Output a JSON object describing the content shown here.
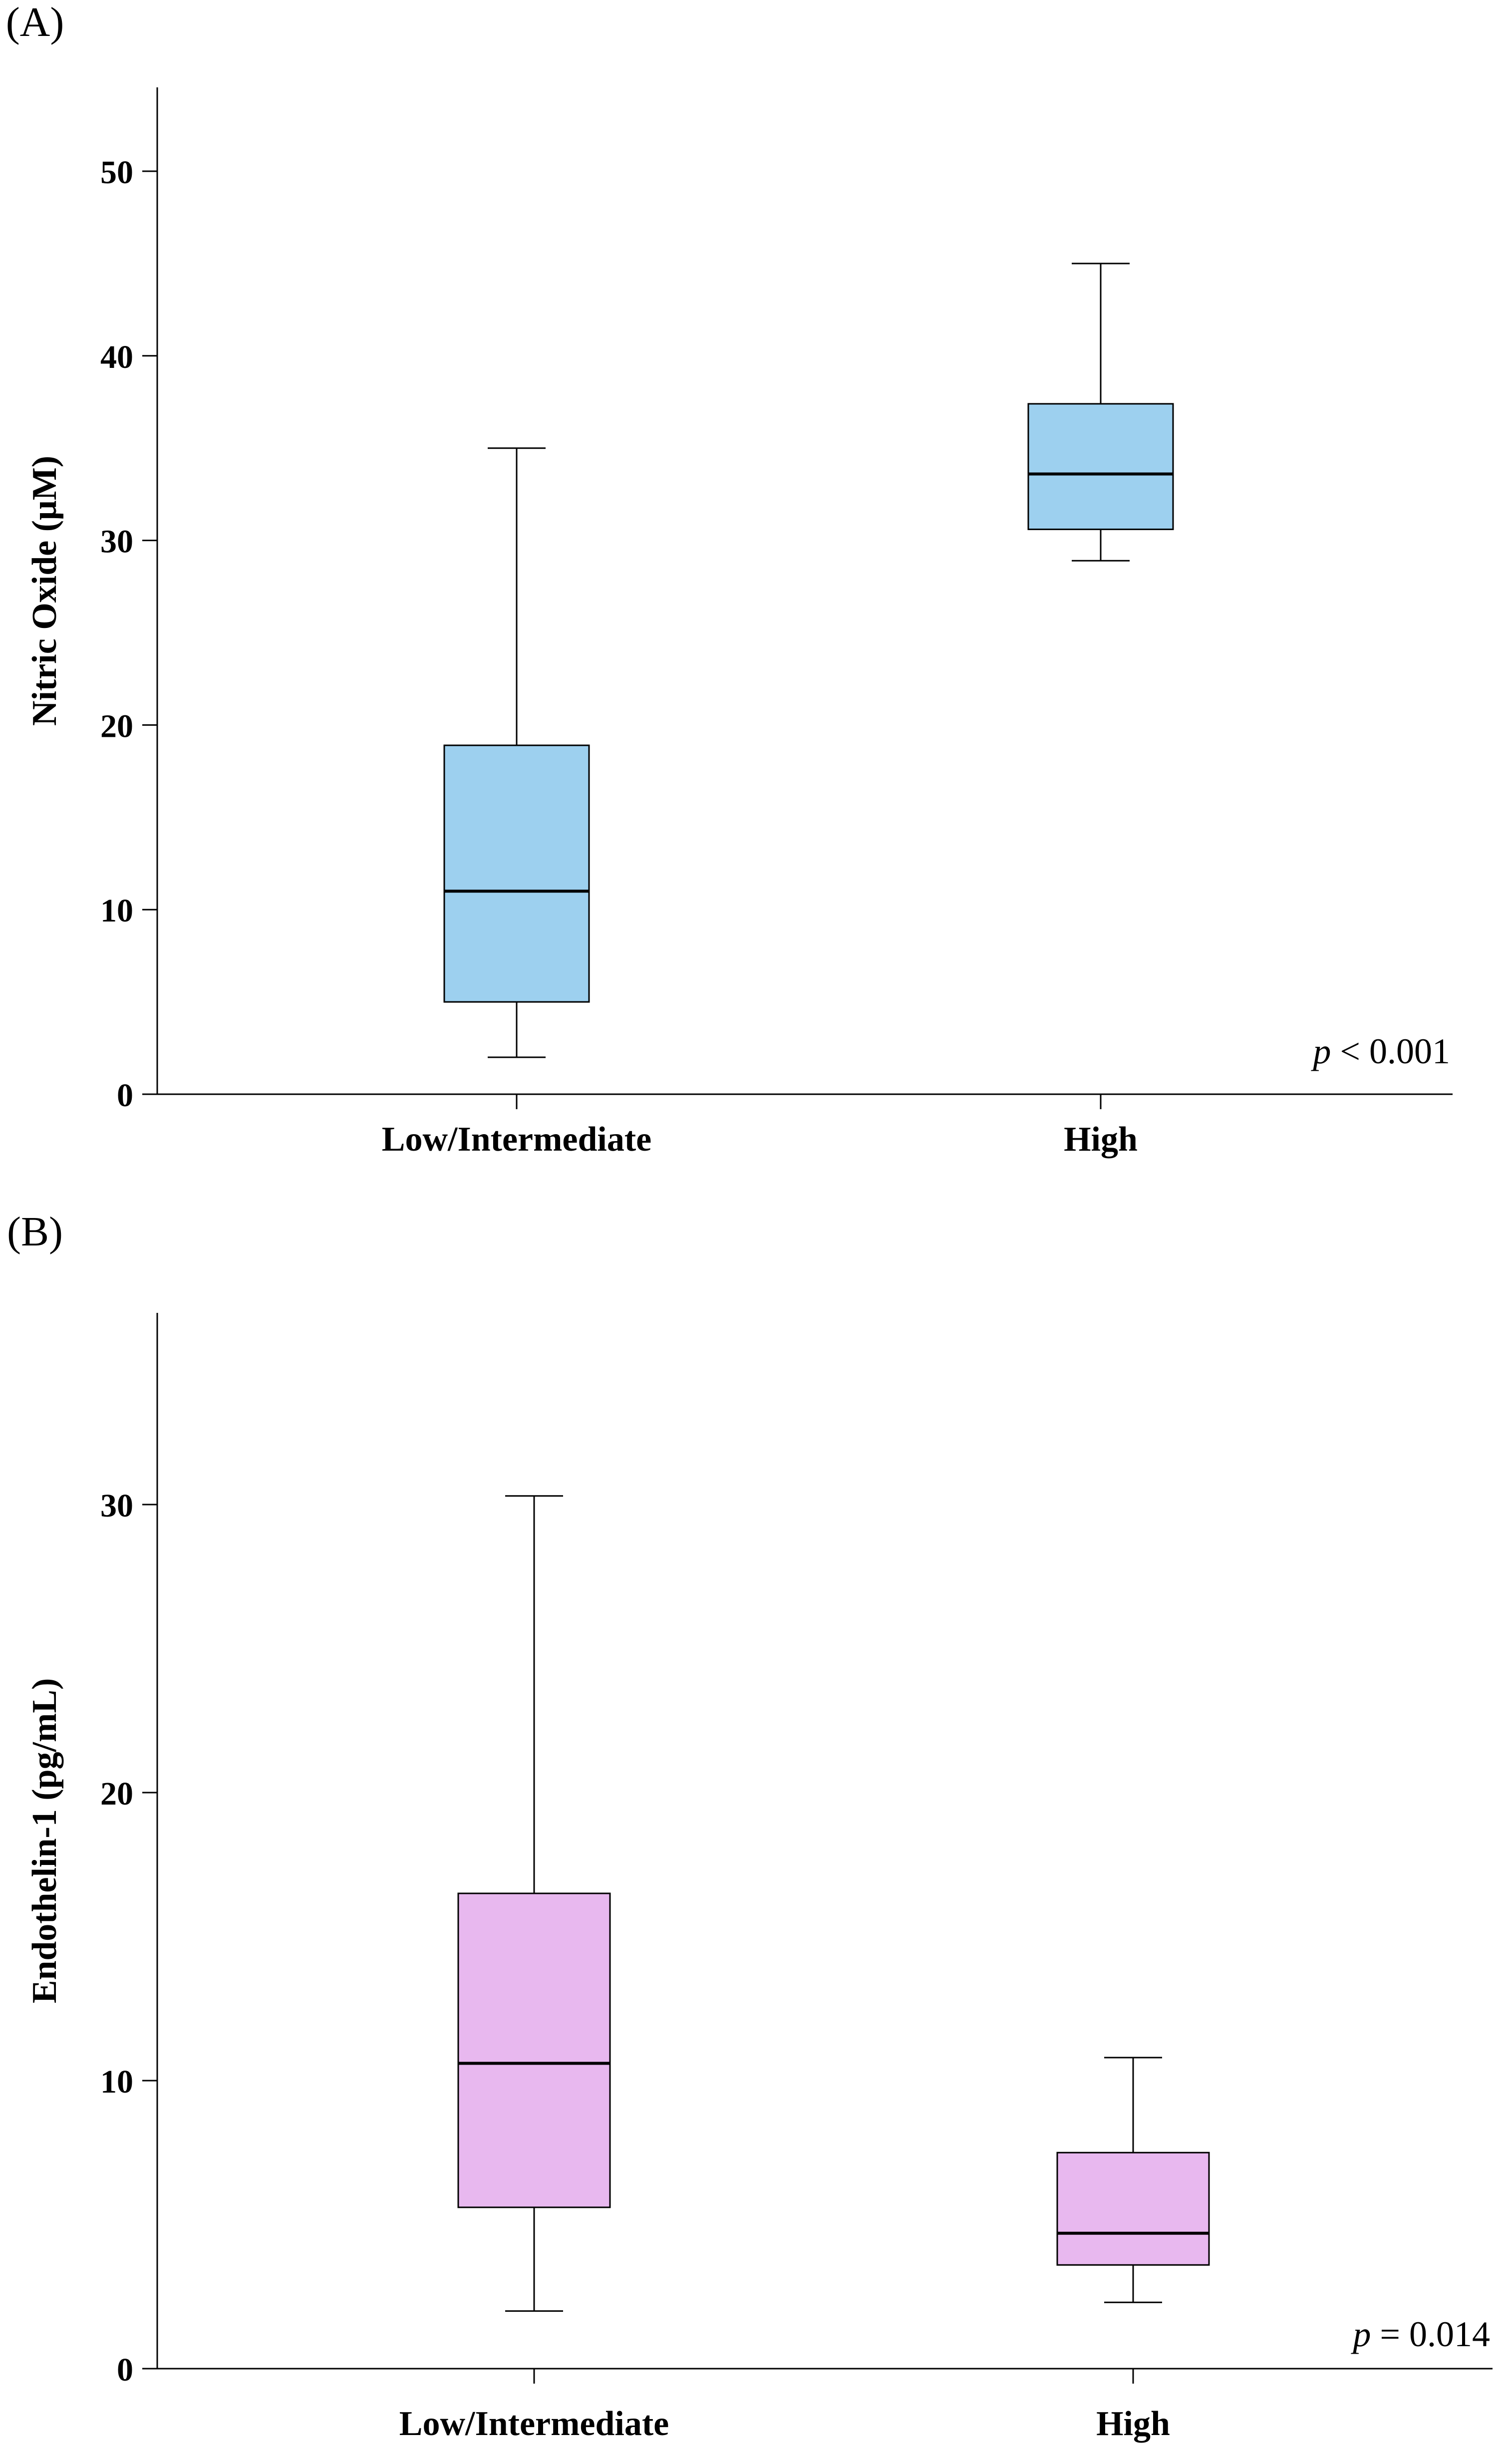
{
  "colors": {
    "panel_a_fill": "#9dd0ef",
    "panel_b_fill": "#e8b8ef",
    "stroke": "#000000"
  },
  "chart_data": [
    {
      "type": "box",
      "panel_label": "(A)",
      "title": "",
      "xlabel": "",
      "ylabel": "Nitric Oxide (μM)",
      "ylim": [
        0,
        55
      ],
      "yticks": [
        0,
        10,
        20,
        30,
        40,
        50
      ],
      "categories": [
        "Low/Intermediate",
        "High"
      ],
      "boxes": [
        {
          "category": "Low/Intermediate",
          "min": 2,
          "q1": 5,
          "median": 11,
          "q3": 18.9,
          "max": 35
        },
        {
          "category": "High",
          "min": 28.9,
          "q1": 30.6,
          "median": 33.6,
          "q3": 37.4,
          "max": 45
        }
      ],
      "annotation": {
        "italic": "p",
        "text": " < 0.001"
      },
      "grid": false
    },
    {
      "type": "box",
      "panel_label": "(B)",
      "title": "",
      "xlabel": "",
      "ylabel": "Endothelin-1 (pg/mL)",
      "ylim": [
        0,
        36.5
      ],
      "yticks": [
        0,
        10,
        20,
        30
      ],
      "categories": [
        "Low/Intermediate",
        "High"
      ],
      "boxes": [
        {
          "category": "Low/Intermediate",
          "min": 2,
          "q1": 5.6,
          "median": 10.6,
          "q3": 16.5,
          "max": 30.3
        },
        {
          "category": "High",
          "min": 2.3,
          "q1": 3.6,
          "median": 4.7,
          "q3": 7.5,
          "max": 10.8
        }
      ],
      "annotation": {
        "italic": "p",
        "text": " = 0.014"
      },
      "grid": false
    }
  ]
}
